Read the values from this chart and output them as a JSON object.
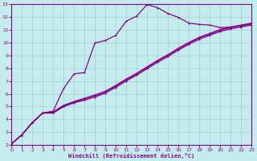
{
  "bg_color": "#c5eced",
  "grid_color": "#9fcfcf",
  "line_color": "#880088",
  "xlabel": "Windchill (Refroidissement éolien,°C)",
  "xlim": [
    0,
    23
  ],
  "ylim": [
    2,
    13
  ],
  "xticks": [
    0,
    1,
    2,
    3,
    4,
    5,
    6,
    7,
    8,
    9,
    10,
    11,
    12,
    13,
    14,
    15,
    16,
    17,
    18,
    19,
    20,
    21,
    22,
    23
  ],
  "yticks": [
    2,
    3,
    4,
    5,
    6,
    7,
    8,
    9,
    10,
    11,
    12,
    13
  ],
  "lines": [
    {
      "x": [
        0,
        1,
        2,
        3,
        4,
        5,
        6,
        7,
        8,
        9,
        10,
        11,
        12,
        13,
        14,
        15,
        16,
        17,
        18,
        19,
        20,
        21,
        22,
        23
      ],
      "y": [
        2.1,
        2.8,
        3.75,
        4.5,
        4.5,
        5.0,
        5.3,
        5.5,
        5.75,
        6.05,
        6.5,
        7.0,
        7.45,
        7.95,
        8.45,
        8.9,
        9.4,
        9.85,
        10.25,
        10.55,
        10.85,
        11.05,
        11.2,
        11.35
      ]
    },
    {
      "x": [
        0,
        1,
        2,
        3,
        4,
        5,
        6,
        7,
        8,
        9,
        10,
        11,
        12,
        13,
        14,
        15,
        16,
        17,
        18,
        19,
        20,
        21,
        22,
        23
      ],
      "y": [
        2.1,
        2.8,
        3.75,
        4.5,
        4.55,
        5.05,
        5.35,
        5.6,
        5.85,
        6.15,
        6.6,
        7.1,
        7.55,
        8.05,
        8.55,
        9.0,
        9.5,
        9.95,
        10.35,
        10.65,
        10.95,
        11.15,
        11.3,
        11.45
      ]
    },
    {
      "x": [
        0,
        1,
        2,
        3,
        4,
        5,
        6,
        7,
        8,
        9,
        10,
        11,
        12,
        13,
        14,
        15,
        16,
        17,
        18,
        19,
        20,
        21,
        22,
        23
      ],
      "y": [
        2.1,
        2.8,
        3.75,
        4.5,
        4.6,
        5.1,
        5.4,
        5.65,
        5.9,
        6.2,
        6.65,
        7.15,
        7.6,
        8.1,
        8.6,
        9.05,
        9.55,
        10.0,
        10.4,
        10.7,
        11.0,
        11.2,
        11.35,
        11.5
      ]
    },
    {
      "x": [
        0,
        1,
        2,
        3,
        4,
        5,
        6,
        7,
        8,
        9,
        10,
        11,
        12,
        13,
        14,
        15,
        16,
        17,
        18,
        19,
        20,
        21,
        22,
        23
      ],
      "y": [
        2.1,
        2.8,
        3.75,
        4.5,
        4.65,
        6.4,
        7.55,
        7.65,
        9.95,
        10.15,
        10.55,
        11.65,
        12.05,
        12.95,
        12.7,
        12.25,
        11.95,
        11.5,
        11.4,
        11.35,
        11.15,
        11.2,
        11.3,
        11.45
      ]
    }
  ],
  "lw": 0.9,
  "ms": 2.5
}
